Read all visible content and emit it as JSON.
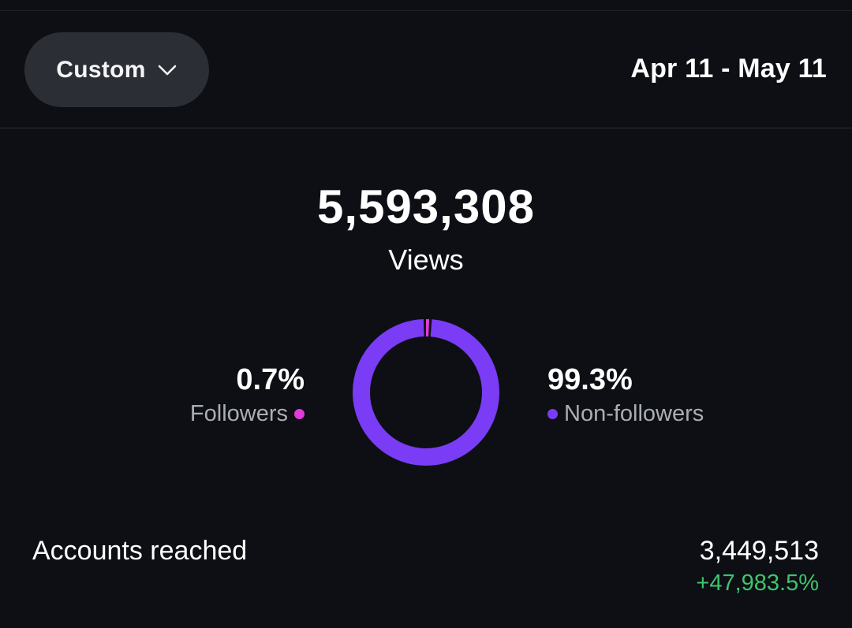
{
  "header": {
    "range_selector_label": "Custom",
    "range_selector_icon": "chevron-down-icon",
    "date_range": "Apr 11 - May 11"
  },
  "summary": {
    "views_value": "5,593,308",
    "views_label": "Views"
  },
  "breakdown": {
    "followers": {
      "percent_label": "0.7%",
      "legend": "Followers",
      "fraction": 0.007,
      "color": "#e43ad8"
    },
    "non_followers": {
      "percent_label": "99.3%",
      "legend": "Non-followers",
      "fraction": 0.993,
      "color": "#7a3cf5"
    }
  },
  "accounts_reached": {
    "label": "Accounts reached",
    "value": "3,449,513",
    "change": "+47,983.5%",
    "change_color": "#3ec46d"
  },
  "colors": {
    "background": "#0d0f14",
    "button_bg": "#2b2e34",
    "muted_text": "#a9aeb6"
  }
}
